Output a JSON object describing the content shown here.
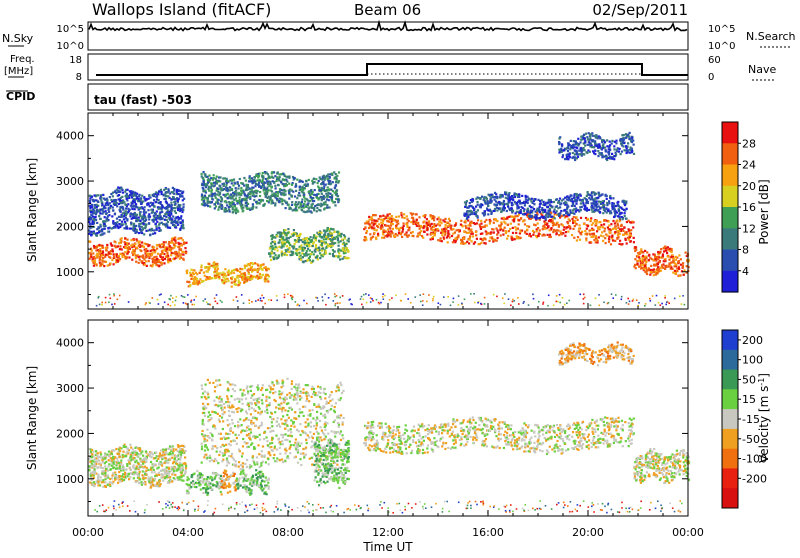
{
  "header": {
    "station": "Wallops Island (fitACF)",
    "beam": "Beam 06",
    "date": "02/Sep/2011"
  },
  "sky_panel": {
    "left_label": "N.Sky",
    "right_label": "N.Search",
    "left_ticks": [
      "10^5",
      "10^0"
    ],
    "right_ticks": [
      "10^5",
      "10^0"
    ]
  },
  "freq_panel": {
    "left_label_top": "Freq.",
    "left_label_bottom": "[MHz]",
    "left_ticks": [
      "18",
      "8"
    ],
    "right_ticks": [
      "60",
      "0"
    ],
    "right_label": "Nave"
  },
  "cpid_panel": {
    "label": "CPID",
    "value": "tau (fast) -503"
  },
  "chart_data": [
    {
      "type": "heatmap",
      "name": "power",
      "x_ticks": [
        "00:00",
        "04:00",
        "08:00",
        "12:00",
        "16:00",
        "20:00",
        "00:00"
      ],
      "x_range_hours": [
        0,
        24
      ],
      "ylabel": "Slant Range [km]",
      "y_ticks": [
        1000,
        2000,
        3000,
        4000
      ],
      "y_range": [
        180,
        4500
      ],
      "colorbar": {
        "label": "Power [dB]",
        "ticks": [
          "4",
          "8",
          "12",
          "16",
          "20",
          "24",
          "28"
        ],
        "colors": [
          "#1f1fd8",
          "#2a4db0",
          "#3a7a7a",
          "#3fa055",
          "#d8d020",
          "#f7a010",
          "#f06010",
          "#e81010"
        ]
      },
      "bands": [
        {
          "h0": 0.0,
          "h1": 3.9,
          "r0": 1200,
          "r1": 1700,
          "level": 6
        },
        {
          "h0": 3.9,
          "h1": 7.2,
          "r0": 780,
          "r1": 1160,
          "level": 5
        },
        {
          "h0": 7.2,
          "h1": 10.4,
          "r0": 1300,
          "r1": 1900,
          "level": 3
        },
        {
          "h0": 11.0,
          "h1": 21.8,
          "r0": 1700,
          "r1": 2250,
          "level": 6
        },
        {
          "h0": 21.8,
          "h1": 24.0,
          "r0": 1000,
          "r1": 1500,
          "level": 6
        },
        {
          "h0": 4.5,
          "h1": 10.0,
          "r0": 2400,
          "r1": 3150,
          "level": 2
        },
        {
          "h0": 18.8,
          "h1": 21.8,
          "r0": 3550,
          "r1": 4000,
          "level": 1
        },
        {
          "h0": 0.0,
          "h1": 3.8,
          "r0": 1900,
          "r1": 2800,
          "level": 1
        },
        {
          "h0": 15.0,
          "h1": 21.5,
          "r0": 2250,
          "r1": 2700,
          "level": 1
        }
      ]
    },
    {
      "type": "heatmap",
      "name": "velocity",
      "x_ticks": [
        "00:00",
        "04:00",
        "08:00",
        "12:00",
        "16:00",
        "20:00",
        "00:00"
      ],
      "x_range_hours": [
        0,
        24
      ],
      "xlabel": "Time UT",
      "ylabel": "Slant Range [km]",
      "y_ticks": [
        1000,
        2000,
        3000,
        4000
      ],
      "y_range": [
        180,
        4500
      ],
      "colorbar": {
        "label": "Velocity [m s^-1]",
        "ticks": [
          "200",
          "100",
          "50",
          "15",
          "-15",
          "-50",
          "-100",
          "-200"
        ],
        "colors": [
          "#1f3fd0",
          "#2b6a9a",
          "#3a9a55",
          "#6ad040",
          "#c8c8c0",
          "#f0a020",
          "#f07010",
          "#e82010",
          "#d81010"
        ]
      },
      "bands": [
        {
          "h0": 0.0,
          "h1": 3.9,
          "r0": 900,
          "r1": 1700,
          "level": 4
        },
        {
          "h0": 3.9,
          "h1": 5.3,
          "r0": 750,
          "r1": 1150,
          "level": 3
        },
        {
          "h0": 5.3,
          "h1": 5.9,
          "r0": 750,
          "r1": 1150,
          "level": 5
        },
        {
          "h0": 5.9,
          "h1": 7.2,
          "r0": 750,
          "r1": 1150,
          "level": 3
        },
        {
          "h0": 4.5,
          "h1": 10.2,
          "r0": 1300,
          "r1": 3150,
          "level": 4
        },
        {
          "h0": 9.0,
          "h1": 10.4,
          "r0": 900,
          "r1": 1800,
          "level": 3
        },
        {
          "h0": 11.0,
          "h1": 21.8,
          "r0": 1650,
          "r1": 2300,
          "level": 4
        },
        {
          "h0": 21.8,
          "h1": 24.0,
          "r0": 1000,
          "r1": 1600,
          "level": 4
        },
        {
          "h0": 18.8,
          "h1": 21.8,
          "r0": 3600,
          "r1": 3950,
          "level": 5
        }
      ]
    }
  ]
}
